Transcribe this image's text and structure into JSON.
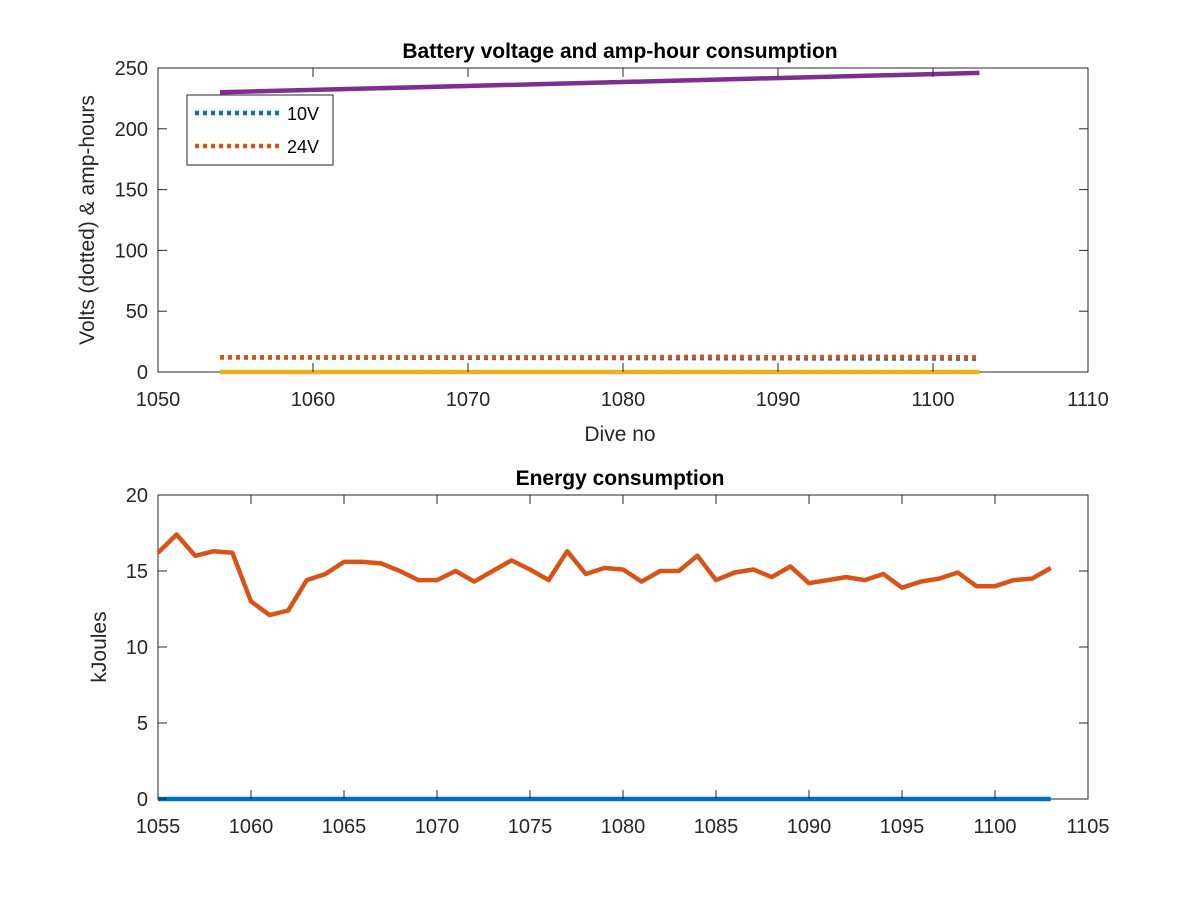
{
  "colors": {
    "series_10V": "#0072BD",
    "series_24V": "#D95319",
    "ah_10V": "#EDB120",
    "ah_24V": "#7E2F8E",
    "energy_10V": "#0072BD",
    "energy_24V": "#D95319",
    "axis": "#262626"
  },
  "chart_data": [
    {
      "type": "line",
      "title": "Battery voltage and amp-hour consumption",
      "xlabel": "Dive no",
      "ylabel": "Volts (dotted) & amp-hours",
      "xlim": [
        1050,
        1110
      ],
      "ylim": [
        0,
        250
      ],
      "xticks": [
        "1050",
        "1060",
        "1070",
        "1080",
        "1090",
        "1100",
        "1110"
      ],
      "yticks": [
        "0",
        "50",
        "100",
        "150",
        "200",
        "250"
      ],
      "grid": false,
      "legend_position": "top-left",
      "legend": [
        {
          "label": "10V",
          "style": "dotted"
        },
        {
          "label": "24V",
          "style": "dotted"
        }
      ],
      "series": [
        {
          "name": "10V",
          "style": "dotted",
          "x": [
            1054,
            1103
          ],
          "y": [
            12,
            11
          ]
        },
        {
          "name": "24V",
          "style": "dotted",
          "x": [
            1054,
            1060,
            1070,
            1080,
            1086,
            1090,
            1096,
            1103
          ],
          "y": [
            12,
            12,
            12,
            12,
            12.5,
            12,
            12.5,
            12
          ]
        },
        {
          "style": "solid",
          "x": [
            1054,
            1103
          ],
          "y": [
            0,
            0
          ]
        },
        {
          "style": "solid",
          "x": [
            1054,
            1103
          ],
          "y": [
            230,
            246
          ]
        }
      ]
    },
    {
      "type": "line",
      "title": "Energy consumption",
      "xlabel": "",
      "ylabel": "kJoules",
      "xlim": [
        1055,
        1105
      ],
      "ylim": [
        0,
        20
      ],
      "xticks": [
        "1055",
        "1060",
        "1065",
        "1070",
        "1075",
        "1080",
        "1085",
        "1090",
        "1095",
        "1100",
        "1105"
      ],
      "yticks": [
        "0",
        "5",
        "10",
        "15",
        "20"
      ],
      "grid": false,
      "series": [
        {
          "style": "solid",
          "x": [
            1055,
            1103
          ],
          "y": [
            0,
            0
          ]
        },
        {
          "style": "solid",
          "x": [
            1055,
            1056,
            1057,
            1058,
            1059,
            1060,
            1061,
            1062,
            1063,
            1064,
            1065,
            1066,
            1067,
            1068,
            1069,
            1070,
            1071,
            1072,
            1073,
            1074,
            1075,
            1076,
            1077,
            1078,
            1079,
            1080,
            1081,
            1082,
            1083,
            1084,
            1085,
            1086,
            1087,
            1088,
            1089,
            1090,
            1091,
            1092,
            1093,
            1094,
            1095,
            1096,
            1097,
            1098,
            1099,
            1100,
            1101,
            1102,
            1103
          ],
          "y": [
            16.2,
            17.4,
            16.0,
            16.3,
            16.2,
            13.0,
            12.1,
            12.4,
            14.4,
            14.8,
            15.6,
            15.6,
            15.5,
            15.0,
            14.4,
            14.4,
            15.0,
            14.3,
            15.0,
            15.7,
            15.1,
            14.4,
            16.3,
            14.8,
            15.2,
            15.1,
            14.3,
            15.0,
            15.0,
            16.0,
            14.4,
            14.9,
            15.1,
            14.6,
            15.3,
            14.2,
            14.4,
            14.6,
            14.4,
            14.8,
            13.9,
            14.3,
            14.5,
            14.9,
            14.0,
            14.0,
            14.4,
            14.5,
            15.2
          ]
        }
      ]
    }
  ]
}
